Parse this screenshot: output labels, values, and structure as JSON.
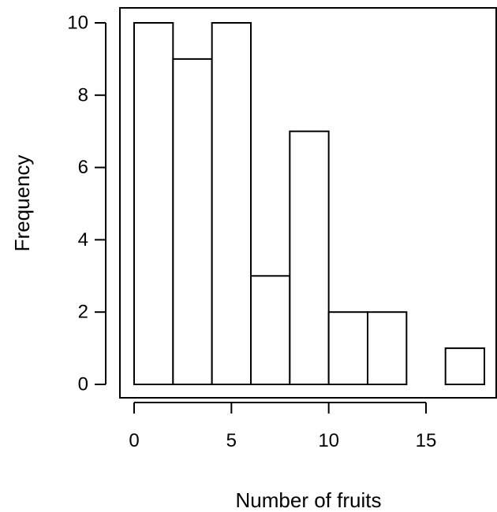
{
  "chart_data": {
    "type": "bar",
    "subtype": "histogram",
    "title": "",
    "xlabel": "Number of fruits",
    "ylabel": "Frequency",
    "bins": [
      {
        "x0": 0,
        "x1": 2,
        "value": 10
      },
      {
        "x0": 2,
        "x1": 4,
        "value": 9
      },
      {
        "x0": 4,
        "x1": 6,
        "value": 10
      },
      {
        "x0": 6,
        "x1": 8,
        "value": 3
      },
      {
        "x0": 8,
        "x1": 10,
        "value": 7
      },
      {
        "x0": 10,
        "x1": 12,
        "value": 2
      },
      {
        "x0": 12,
        "x1": 14,
        "value": 2
      },
      {
        "x0": 14,
        "x1": 16,
        "value": 0
      },
      {
        "x0": 16,
        "x1": 18,
        "value": 1
      }
    ],
    "xlim": [
      0,
      18
    ],
    "ylim": [
      0,
      10
    ],
    "xticks": [
      "0",
      "5",
      "10",
      "15"
    ],
    "yticks": [
      "0",
      "2",
      "4",
      "6",
      "8",
      "10"
    ],
    "grid": false,
    "legend": "none",
    "colors": {
      "bar_fill": "#ffffff",
      "bar_edge": "#000000"
    }
  }
}
